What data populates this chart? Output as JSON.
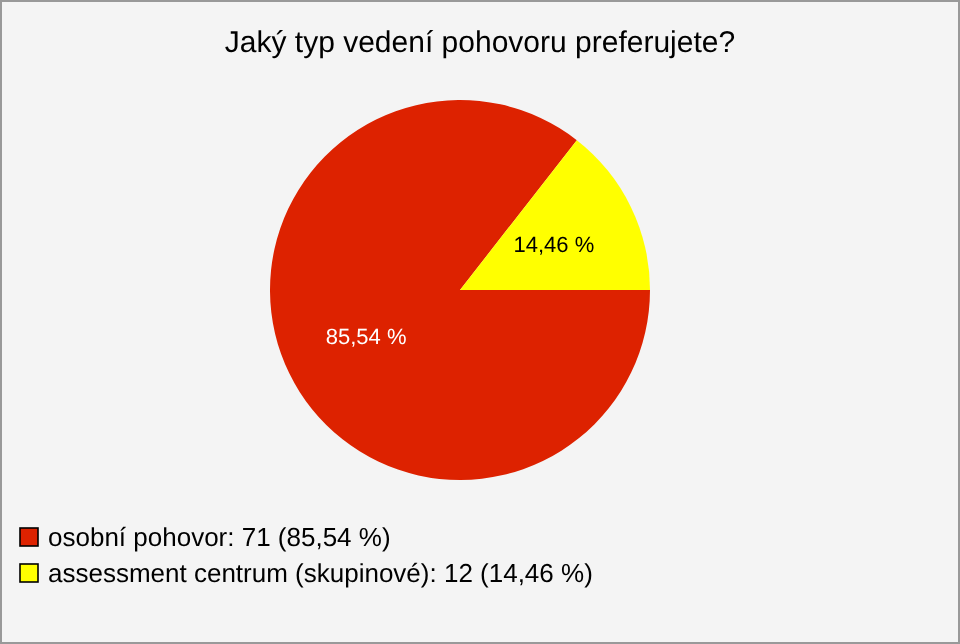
{
  "chart_data": {
    "type": "pie",
    "title": "Jaký typ vedení pohovoru preferujete?",
    "categories": [
      "osobní pohovor: 71 (85,54 %)",
      "assessment centrum (skupinové): 12 (14,46 %)"
    ],
    "values": [
      85.54,
      14.46
    ],
    "colors": [
      "#dd2200",
      "#ffff00"
    ],
    "value_labels": [
      "85,54 %",
      "14,46 %"
    ],
    "legend": "bottom left"
  }
}
